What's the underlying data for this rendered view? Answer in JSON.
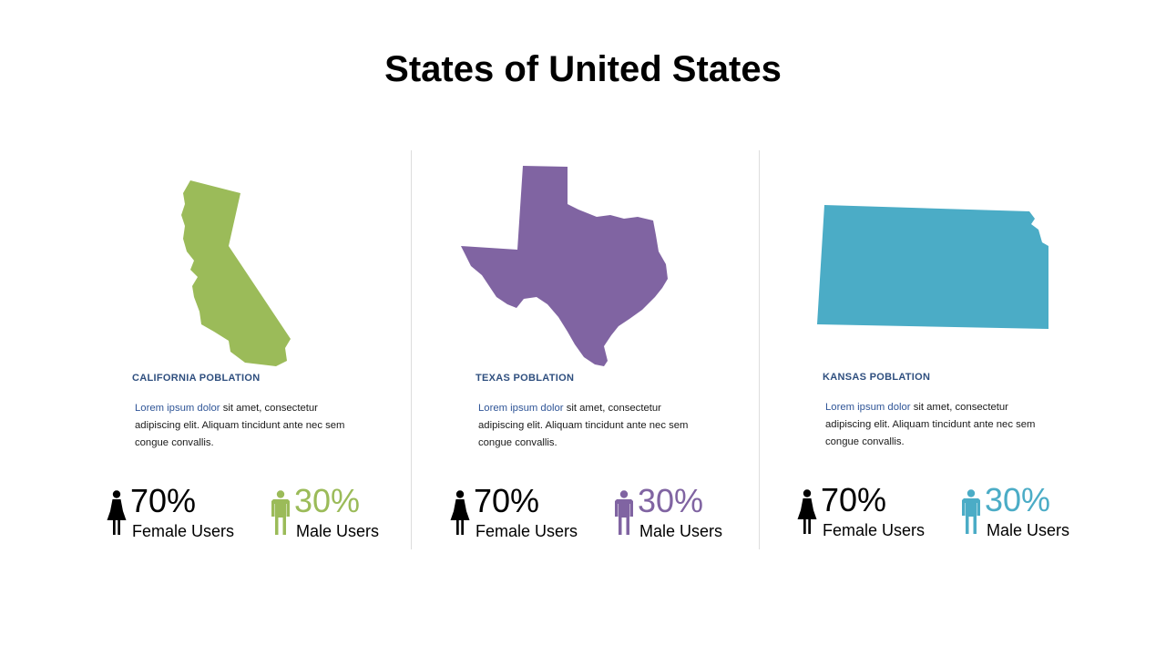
{
  "title": "States of United States",
  "panels": [
    {
      "state": "California",
      "map_icon": "california-map",
      "heading": "CALIFORNIA  POBLATION",
      "desc_highlight": "Lorem ipsum dolor",
      "desc_rest": " sit amet, consectetur adipiscing elit. Aliquam tincidunt ante nec sem congue convallis.",
      "female": {
        "value": "70%",
        "label": "Female Users",
        "icon": "female-icon"
      },
      "male": {
        "value": "30%",
        "label": "Male Users",
        "icon": "male-icon"
      },
      "color": "#9bbb59"
    },
    {
      "state": "Texas",
      "map_icon": "texas-map",
      "heading": "TEXAS  POBLATION",
      "desc_highlight": "Lorem ipsum dolor",
      "desc_rest": " sit amet, consectetur adipiscing elit. Aliquam tincidunt ante nec sem congue convallis.",
      "female": {
        "value": "70%",
        "label": "Female Users",
        "icon": "female-icon"
      },
      "male": {
        "value": "30%",
        "label": "Male Users",
        "icon": "male-icon"
      },
      "color": "#8064a2"
    },
    {
      "state": "Kansas",
      "map_icon": "kansas-map",
      "heading": "KANSAS  POBLATION",
      "desc_highlight": "Lorem ipsum dolor",
      "desc_rest": " sit amet, consectetur adipiscing elit. Aliquam tincidunt ante nec sem congue convallis.",
      "female": {
        "value": "70%",
        "label": "Female Users",
        "icon": "female-icon"
      },
      "male": {
        "value": "30%",
        "label": "Male Users",
        "icon": "male-icon"
      },
      "color": "#4bacc6"
    }
  ],
  "colors": {
    "female_icon": "#000000",
    "heading": "#2f4f7f",
    "highlight": "#2f5597"
  }
}
